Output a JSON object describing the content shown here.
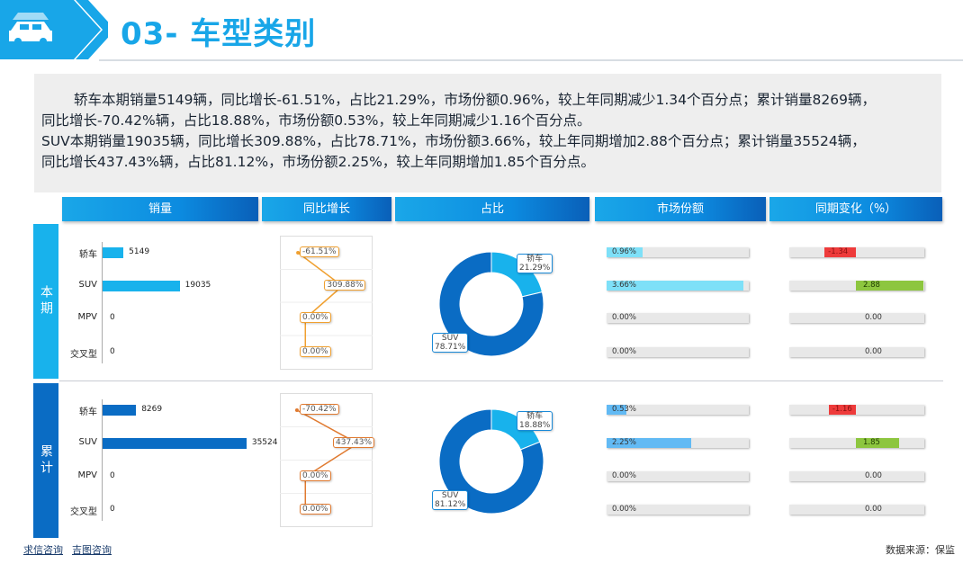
{
  "header": {
    "title": "03- 车型类别"
  },
  "summary": {
    "lines": [
      "轿车本期销量5149辆，同比增长-61.51%，占比21.29%，市场份额0.96%，较上年同期减少1.34个百分点；累计销量8269辆，",
      "同比增长-70.42%辆，占比18.88%，市场份额0.53%，较上年同期减少1.16个百分点。",
      "SUV本期销量19035辆，同比增长309.88%，占比78.71%，市场份额3.66%，较上年同期增加2.88个百分点；累计销量35524辆，",
      "同比增长437.43%辆，占比81.12%，市场份额2.25%，较上年同期增加1.85个百分点。"
    ]
  },
  "columns": [
    "销量",
    "同比增长",
    "占比",
    "市场份额",
    "同期变化（%）"
  ],
  "groups": [
    "本期",
    "累计"
  ],
  "colors": {
    "current": "#18b2ec",
    "cumulative": "#0a6cc4",
    "negative": "#ee3b3b",
    "positive": "#8dc63f",
    "growthLine": "#f0a030",
    "growthLineCum": "#e07a30"
  },
  "chart_data": [
    {
      "type": "bar",
      "group": "本期",
      "metric": "销量",
      "categories": [
        "轿车",
        "SUV",
        "MPV",
        "交叉型"
      ],
      "values": [
        5149,
        19035,
        0,
        0
      ],
      "labels": [
        "5149",
        "19035",
        "0",
        "0"
      ]
    },
    {
      "type": "line",
      "group": "本期",
      "metric": "同比增长",
      "categories": [
        "轿车",
        "SUV",
        "MPV",
        "交叉型"
      ],
      "values": [
        -61.51,
        309.88,
        0,
        0
      ],
      "labels": [
        "-61.51%",
        "309.88%",
        "0.00%",
        "0.00%"
      ]
    },
    {
      "type": "pie",
      "group": "本期",
      "metric": "占比",
      "slices": [
        {
          "name": "轿车",
          "value": 21.29,
          "label": "21.29%"
        },
        {
          "name": "SUV",
          "value": 78.71,
          "label": "78.71%"
        }
      ]
    },
    {
      "type": "bar",
      "group": "本期",
      "metric": "市场份额",
      "categories": [
        "轿车",
        "SUV",
        "MPV",
        "交叉型"
      ],
      "values": [
        0.96,
        3.66,
        0,
        0
      ],
      "labels": [
        "0.96%",
        "3.66%",
        "0.00%",
        "0.00%"
      ]
    },
    {
      "type": "bar",
      "group": "本期",
      "metric": "同期变化（%）",
      "categories": [
        "轿车",
        "SUV",
        "MPV",
        "交叉型"
      ],
      "values": [
        -1.34,
        2.88,
        0,
        0
      ],
      "labels": [
        "-1.34",
        "2.88",
        "0.00",
        "0.00"
      ]
    },
    {
      "type": "bar",
      "group": "累计",
      "metric": "销量",
      "categories": [
        "轿车",
        "SUV",
        "MPV",
        "交叉型"
      ],
      "values": [
        8269,
        35524,
        0,
        0
      ],
      "labels": [
        "8269",
        "35524",
        "0",
        "0"
      ]
    },
    {
      "type": "line",
      "group": "累计",
      "metric": "同比增长",
      "categories": [
        "轿车",
        "SUV",
        "MPV",
        "交叉型"
      ],
      "values": [
        -70.42,
        437.43,
        0,
        0
      ],
      "labels": [
        "-70.42%",
        "437.43%",
        "0.00%",
        "0.00%"
      ]
    },
    {
      "type": "pie",
      "group": "累计",
      "metric": "占比",
      "slices": [
        {
          "name": "轿车",
          "value": 18.88,
          "label": "18.88%"
        },
        {
          "name": "SUV",
          "value": 81.12,
          "label": "81.12%"
        }
      ]
    },
    {
      "type": "bar",
      "group": "累计",
      "metric": "市场份额",
      "categories": [
        "轿车",
        "SUV",
        "MPV",
        "交叉型"
      ],
      "values": [
        0.53,
        2.25,
        0,
        0
      ],
      "labels": [
        "0.53%",
        "2.25%",
        "0.00%",
        "0.00%"
      ]
    },
    {
      "type": "bar",
      "group": "累计",
      "metric": "同期变化（%）",
      "categories": [
        "轿车",
        "SUV",
        "MPV",
        "交叉型"
      ],
      "values": [
        -1.16,
        1.85,
        0,
        0
      ],
      "labels": [
        "-1.16",
        "1.85",
        "0.00",
        "0.00"
      ]
    }
  ],
  "footer": {
    "links": [
      "求信咨询",
      "吉图咨询"
    ],
    "source": "数据来源：保监"
  }
}
